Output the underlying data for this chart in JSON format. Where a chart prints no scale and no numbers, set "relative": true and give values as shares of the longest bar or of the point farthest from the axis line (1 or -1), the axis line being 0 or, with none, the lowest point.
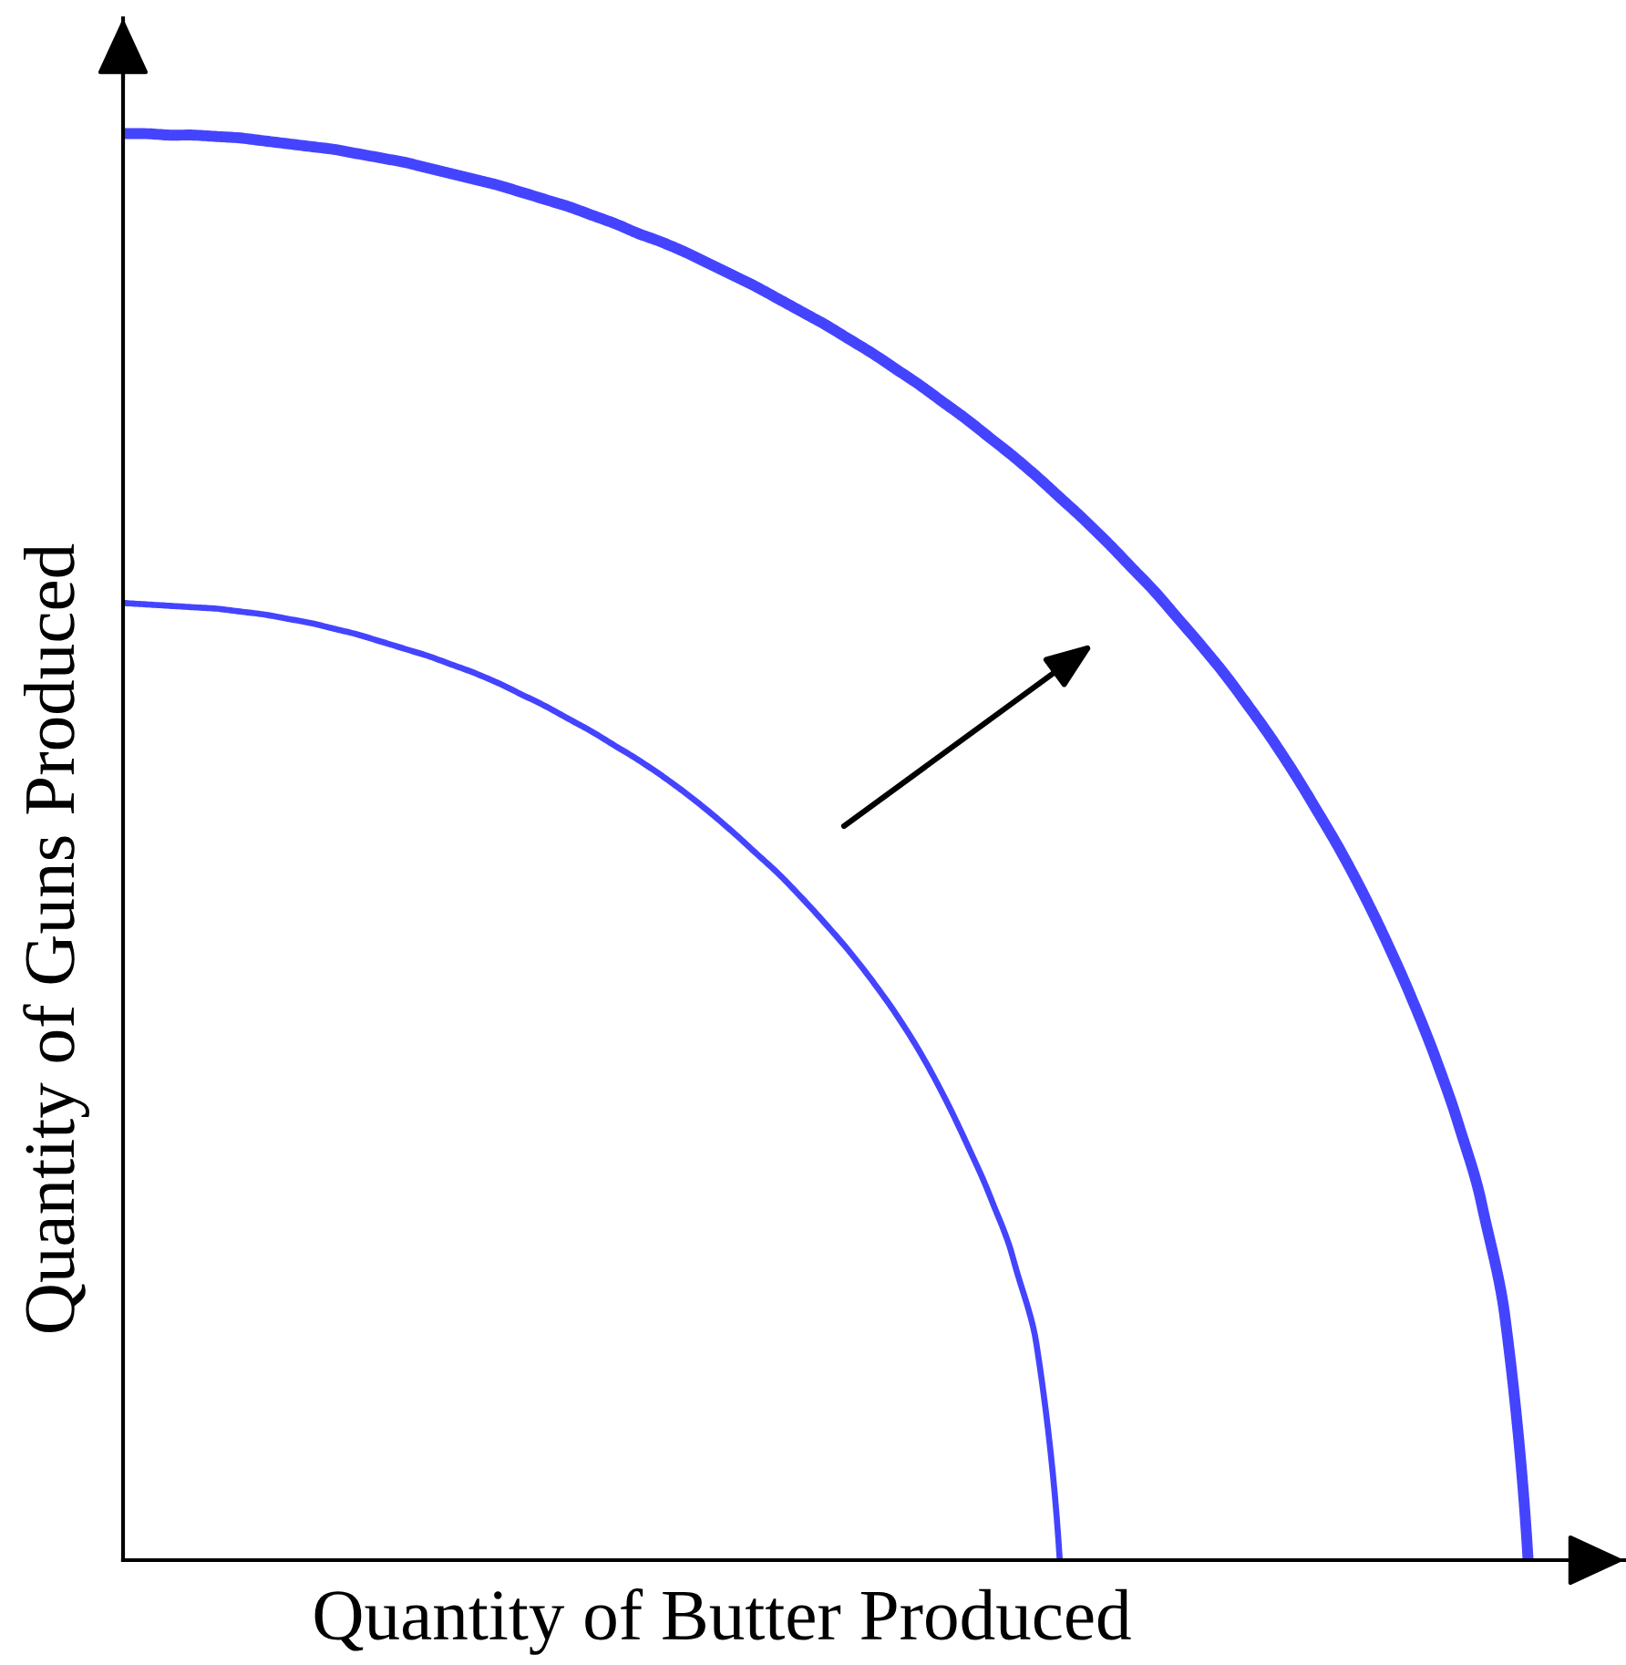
{
  "chart_data": {
    "type": "line",
    "xlabel": "Quantity of Butter Produced",
    "ylabel": "Quantity of Guns Produced",
    "relative": true,
    "categories": [
      null,
      null,
      null,
      null,
      null,
      null,
      null,
      null,
      null,
      null,
      null,
      null,
      null,
      null,
      null,
      null,
      null,
      null,
      null,
      null,
      null,
      null,
      null,
      null,
      null,
      null,
      null,
      null,
      null,
      null,
      null,
      null,
      null,
      null,
      null,
      null,
      null,
      null,
      null,
      null,
      null,
      null,
      null,
      null,
      null,
      null,
      null,
      null,
      null,
      null,
      null,
      null,
      null,
      null,
      null,
      null,
      null,
      null,
      null,
      null,
      null
    ],
    "series": [
      {
        "color": "#4444ff",
        "values": [
          0.671,
          0.67,
          0.669,
          0.668,
          0.667,
          0.665,
          0.663,
          0.66,
          0.657,
          0.653,
          0.649,
          0.644,
          0.639,
          0.634,
          0.628,
          0.622,
          0.615,
          0.607,
          0.599,
          0.59,
          0.581,
          0.571,
          0.561,
          0.55,
          0.538,
          0.525,
          0.511,
          0.496,
          0.481,
          0.464,
          0.446,
          0.427,
          0.406,
          0.383,
          0.357,
          0.327,
          0.293,
          0.256,
          0.212,
          0.152,
          0,
          null,
          null,
          null,
          null,
          null,
          null,
          null,
          null,
          null,
          null,
          null,
          null,
          null,
          null,
          null,
          null,
          null,
          null,
          null,
          null
        ]
      },
      {
        "color": "#4444ff",
        "values": [
          1.0,
          1.0,
          0.999,
          0.999,
          0.998,
          0.997,
          0.995,
          0.993,
          0.991,
          0.989,
          0.986,
          0.983,
          0.98,
          0.976,
          0.972,
          0.968,
          0.964,
          0.959,
          0.954,
          0.949,
          0.943,
          0.937,
          0.93,
          0.924,
          0.917,
          0.909,
          0.901,
          0.893,
          0.884,
          0.875,
          0.866,
          0.856,
          0.846,
          0.835,
          0.824,
          0.812,
          0.8,
          0.787,
          0.774,
          0.76,
          0.745,
          0.73,
          0.714,
          0.697,
          0.68,
          0.661,
          0.642,
          0.622,
          0.6,
          0.577,
          0.552,
          0.525,
          0.497,
          0.466,
          0.432,
          0.395,
          0.354,
          0.307,
          0.251,
          0.172,
          0
        ]
      }
    ]
  }
}
